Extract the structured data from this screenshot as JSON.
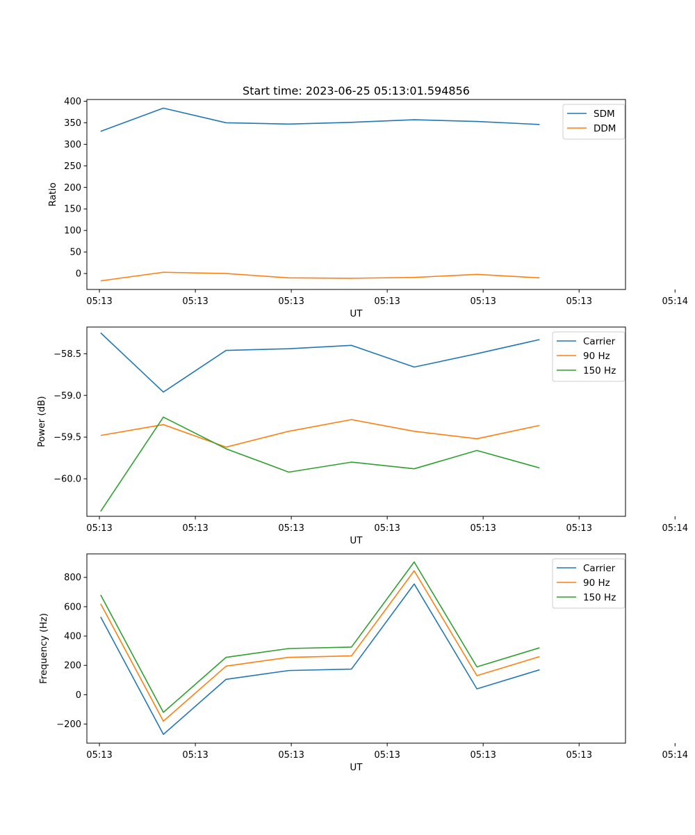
{
  "chart_data": [
    {
      "type": "line",
      "title": "Start time: 2023-06-25 05:13:01.594856",
      "xlabel": "UT",
      "ylabel": "Ratio",
      "x_tick_labels": [
        "05:13",
        "05:13",
        "05:13",
        "05:13",
        "05:13",
        "05:13",
        "05:14"
      ],
      "y_ticks": [
        0,
        50,
        100,
        150,
        200,
        250,
        300,
        350,
        400
      ],
      "y_tick_labels": [
        "0",
        "50",
        "100",
        "150",
        "200",
        "250",
        "300",
        "350",
        "400"
      ],
      "ylim": [
        -37,
        404
      ],
      "grid": false,
      "legend": "upper right",
      "x": [
        1,
        2,
        3,
        4,
        5,
        6,
        7,
        8
      ],
      "series": [
        {
          "name": "SDM",
          "color": "#1f77b4",
          "values": [
            330,
            384,
            350,
            347,
            351,
            357,
            353,
            346
          ]
        },
        {
          "name": "DDM",
          "color": "#ff7f0e",
          "values": [
            -17,
            3,
            0,
            -10,
            -11,
            -9,
            -2,
            -10
          ]
        }
      ]
    },
    {
      "type": "line",
      "title": "",
      "xlabel": "UT",
      "ylabel": "Power (dB)",
      "x_tick_labels": [
        "05:13",
        "05:13",
        "05:13",
        "05:13",
        "05:13",
        "05:13",
        "05:14"
      ],
      "y_ticks": [
        -60.0,
        -59.5,
        -59.0,
        -58.5
      ],
      "y_tick_labels": [
        "−60.0",
        "−59.5",
        "−59.0",
        "−58.5"
      ],
      "ylim": [
        -60.45,
        -58.18
      ],
      "grid": false,
      "legend": "upper right",
      "x": [
        1,
        2,
        3,
        4,
        5,
        6,
        7,
        8
      ],
      "series": [
        {
          "name": "Carrier",
          "color": "#1f77b4",
          "values": [
            -58.25,
            -58.96,
            -58.46,
            -58.44,
            -58.4,
            -58.66,
            -58.5,
            -58.33
          ]
        },
        {
          "name": "90 Hz",
          "color": "#ff7f0e",
          "values": [
            -59.48,
            -59.35,
            -59.62,
            -59.43,
            -59.29,
            -59.43,
            -59.52,
            -59.36
          ]
        },
        {
          "name": "150 Hz",
          "color": "#2ca02c",
          "values": [
            -60.39,
            -59.26,
            -59.64,
            -59.92,
            -59.8,
            -59.88,
            -59.66,
            -59.87
          ]
        }
      ]
    },
    {
      "type": "line",
      "title": "",
      "xlabel": "UT",
      "ylabel": "Frequency (Hz)",
      "x_tick_labels": [
        "05:13",
        "05:13",
        "05:13",
        "05:13",
        "05:13",
        "05:13",
        "05:14"
      ],
      "y_ticks": [
        -200,
        0,
        200,
        400,
        600,
        800
      ],
      "y_tick_labels": [
        "−200",
        "0",
        "200",
        "400",
        "600",
        "800"
      ],
      "ylim": [
        -330,
        960
      ],
      "grid": false,
      "legend": "upper right",
      "x": [
        1,
        2,
        3,
        4,
        5,
        6,
        7,
        8
      ],
      "series": [
        {
          "name": "Carrier",
          "color": "#1f77b4",
          "values": [
            530,
            -270,
            105,
            165,
            175,
            755,
            40,
            170
          ]
        },
        {
          "name": "90 Hz",
          "color": "#ff7f0e",
          "values": [
            620,
            -180,
            195,
            255,
            265,
            845,
            130,
            260
          ]
        },
        {
          "name": "150 Hz",
          "color": "#2ca02c",
          "values": [
            680,
            -120,
            255,
            315,
            325,
            905,
            190,
            320
          ]
        }
      ]
    }
  ]
}
